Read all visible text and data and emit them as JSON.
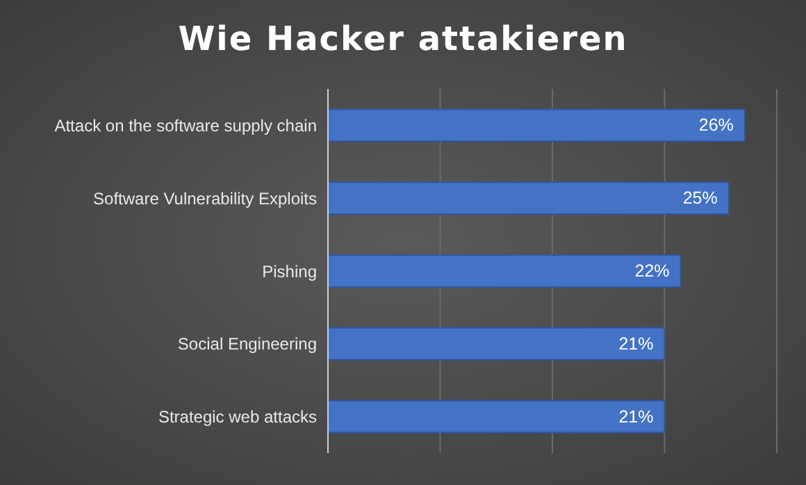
{
  "chart_data": {
    "type": "bar",
    "orientation": "horizontal",
    "title": "Wie Hacker attakieren",
    "categories": [
      "Attack on the software supply chain",
      "Software Vulnerability Exploits",
      "Pishing",
      "Social Engineering",
      "Strategic web attacks"
    ],
    "values": [
      26,
      25,
      22,
      21,
      21
    ],
    "value_labels": [
      "26%",
      "25%",
      "22%",
      "21%",
      "21%"
    ],
    "color": "#4472c4",
    "tick_labels": "y",
    "grid": "x",
    "legend": false
  }
}
